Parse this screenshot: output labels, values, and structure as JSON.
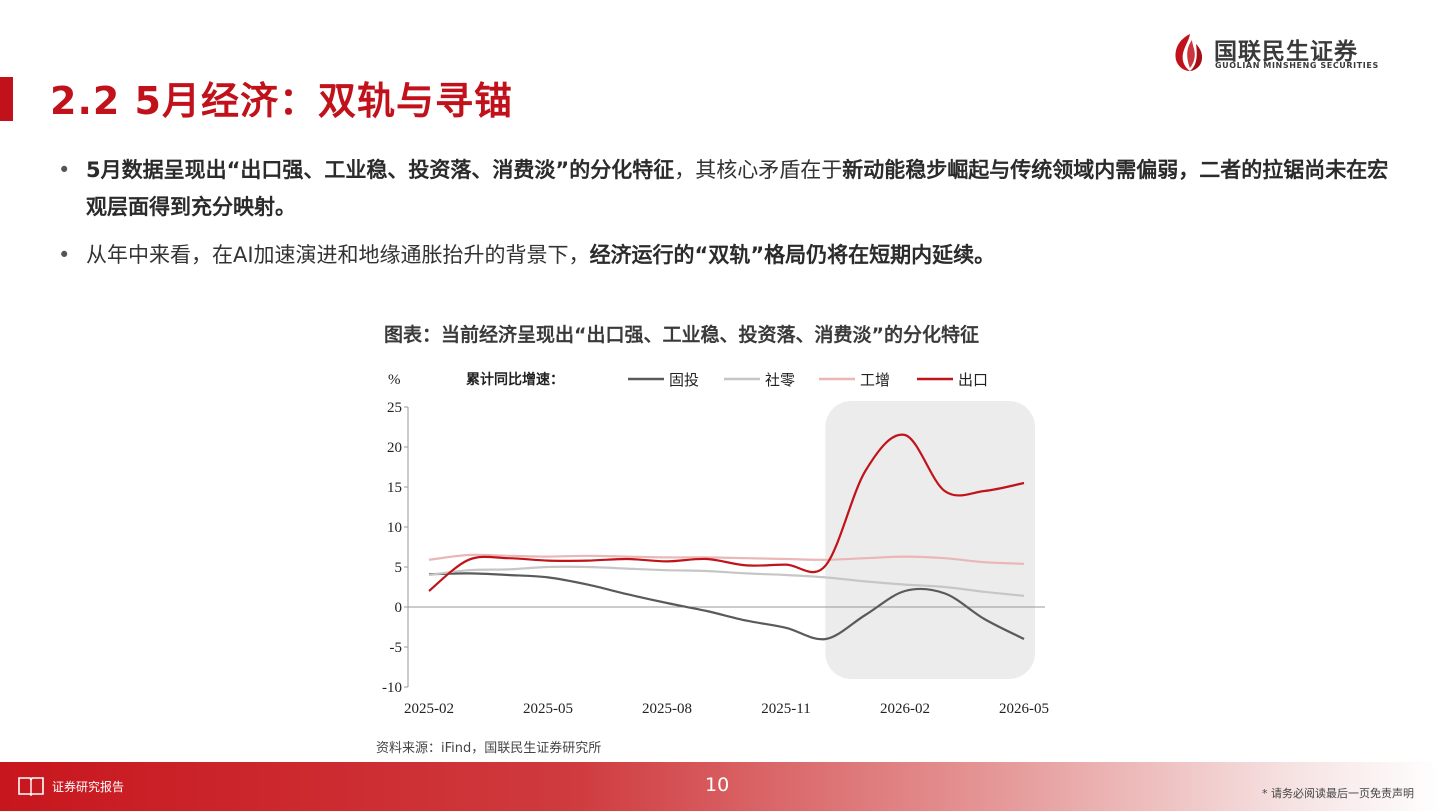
{
  "header": {
    "title": "2.2 5月经济：双轨与寻锚",
    "logo_cn": "国联民生证券",
    "logo_en": "GUOLIAN MINSHENG SECURITIES",
    "brand_color": "#c1121c"
  },
  "bullets": [
    {
      "dot": "•",
      "parts": [
        {
          "text": "5月数据呈现出“出口强、工业稳、投资落、消费淡”的分化特征",
          "bold": true
        },
        {
          "text": "，其核心矛盾在于",
          "bold": false
        },
        {
          "text": "新动能稳步崛起与传统领域内需偏弱，二者的拉锯尚未在宏观层面得到充分映射。",
          "bold": true
        }
      ]
    },
    {
      "dot": "•",
      "parts": [
        {
          "text": "从年中来看，在AI加速演进和地缘通胀抬升的背景下，",
          "bold": false
        },
        {
          "text": "经济运行的“双轨”格局仍将在短期内延续。",
          "bold": true
        }
      ]
    }
  ],
  "chart": {
    "title": "图表：当前经济呈现出“出口强、工业稳、投资落、消费淡”的分化特征",
    "source": "资料来源：iFind，国联民生证券研究所"
  },
  "chart_data": {
    "type": "line",
    "ylabel": "%",
    "legend_title": "累计同比增速：",
    "legend_position": "top",
    "ylim": [
      -10,
      25
    ],
    "yticks": [
      -10,
      -5,
      0,
      5,
      10,
      15,
      20,
      25
    ],
    "xlim": [
      "2025-02",
      "2026-05"
    ],
    "xticks": [
      "2025-02",
      "2025-05",
      "2025-08",
      "2025-11",
      "2026-02",
      "2026-05"
    ],
    "highlight_range": [
      "2026-01",
      "2026-05"
    ],
    "highlight_color": "#ececec",
    "grid": false,
    "series": [
      {
        "name": "固投",
        "color": "#5a5a5a",
        "x": [
          "2025-02",
          "2025-03",
          "2025-04",
          "2025-05",
          "2025-06",
          "2025-07",
          "2025-08",
          "2025-09",
          "2025-10",
          "2025-11",
          "2025-12",
          "2026-01",
          "2026-02",
          "2026-03",
          "2026-04",
          "2026-05"
        ],
        "y": [
          4.1,
          4.2,
          4.0,
          3.7,
          2.8,
          1.6,
          0.5,
          -0.5,
          -1.7,
          -2.6,
          -4.0,
          -1.0,
          2.0,
          1.7,
          -1.5,
          -4.0
        ]
      },
      {
        "name": "社零",
        "color": "#c6c6c6",
        "x": [
          "2025-02",
          "2025-03",
          "2025-04",
          "2025-05",
          "2025-06",
          "2025-07",
          "2025-08",
          "2025-09",
          "2025-10",
          "2025-11",
          "2025-12",
          "2026-01",
          "2026-02",
          "2026-03",
          "2026-04",
          "2026-05"
        ],
        "y": [
          4.0,
          4.6,
          4.7,
          5.0,
          5.0,
          4.8,
          4.6,
          4.5,
          4.2,
          4.0,
          3.7,
          3.2,
          2.8,
          2.5,
          1.9,
          1.4
        ]
      },
      {
        "name": "工增",
        "color": "#eab6b6",
        "x": [
          "2025-02",
          "2025-03",
          "2025-04",
          "2025-05",
          "2025-06",
          "2025-07",
          "2025-08",
          "2025-09",
          "2025-10",
          "2025-11",
          "2025-12",
          "2026-01",
          "2026-02",
          "2026-03",
          "2026-04",
          "2026-05"
        ],
        "y": [
          5.9,
          6.5,
          6.4,
          6.3,
          6.4,
          6.3,
          6.2,
          6.2,
          6.1,
          6.0,
          5.9,
          6.1,
          6.3,
          6.1,
          5.6,
          5.4
        ]
      },
      {
        "name": "出口",
        "color": "#c0141b",
        "x": [
          "2025-02",
          "2025-03",
          "2025-04",
          "2025-05",
          "2025-06",
          "2025-07",
          "2025-08",
          "2025-09",
          "2025-10",
          "2025-11",
          "2025-12",
          "2026-01",
          "2026-02",
          "2026-03",
          "2026-04",
          "2026-05"
        ],
        "y": [
          2.0,
          5.9,
          6.1,
          5.8,
          5.8,
          6.0,
          5.7,
          6.0,
          5.2,
          5.3,
          5.2,
          17.0,
          21.5,
          14.5,
          14.5,
          15.5
        ]
      }
    ]
  },
  "footer": {
    "label": "证券研究报告",
    "page_number": "10",
    "disclaimer": "* 请务必阅读最后一页免责声明"
  }
}
